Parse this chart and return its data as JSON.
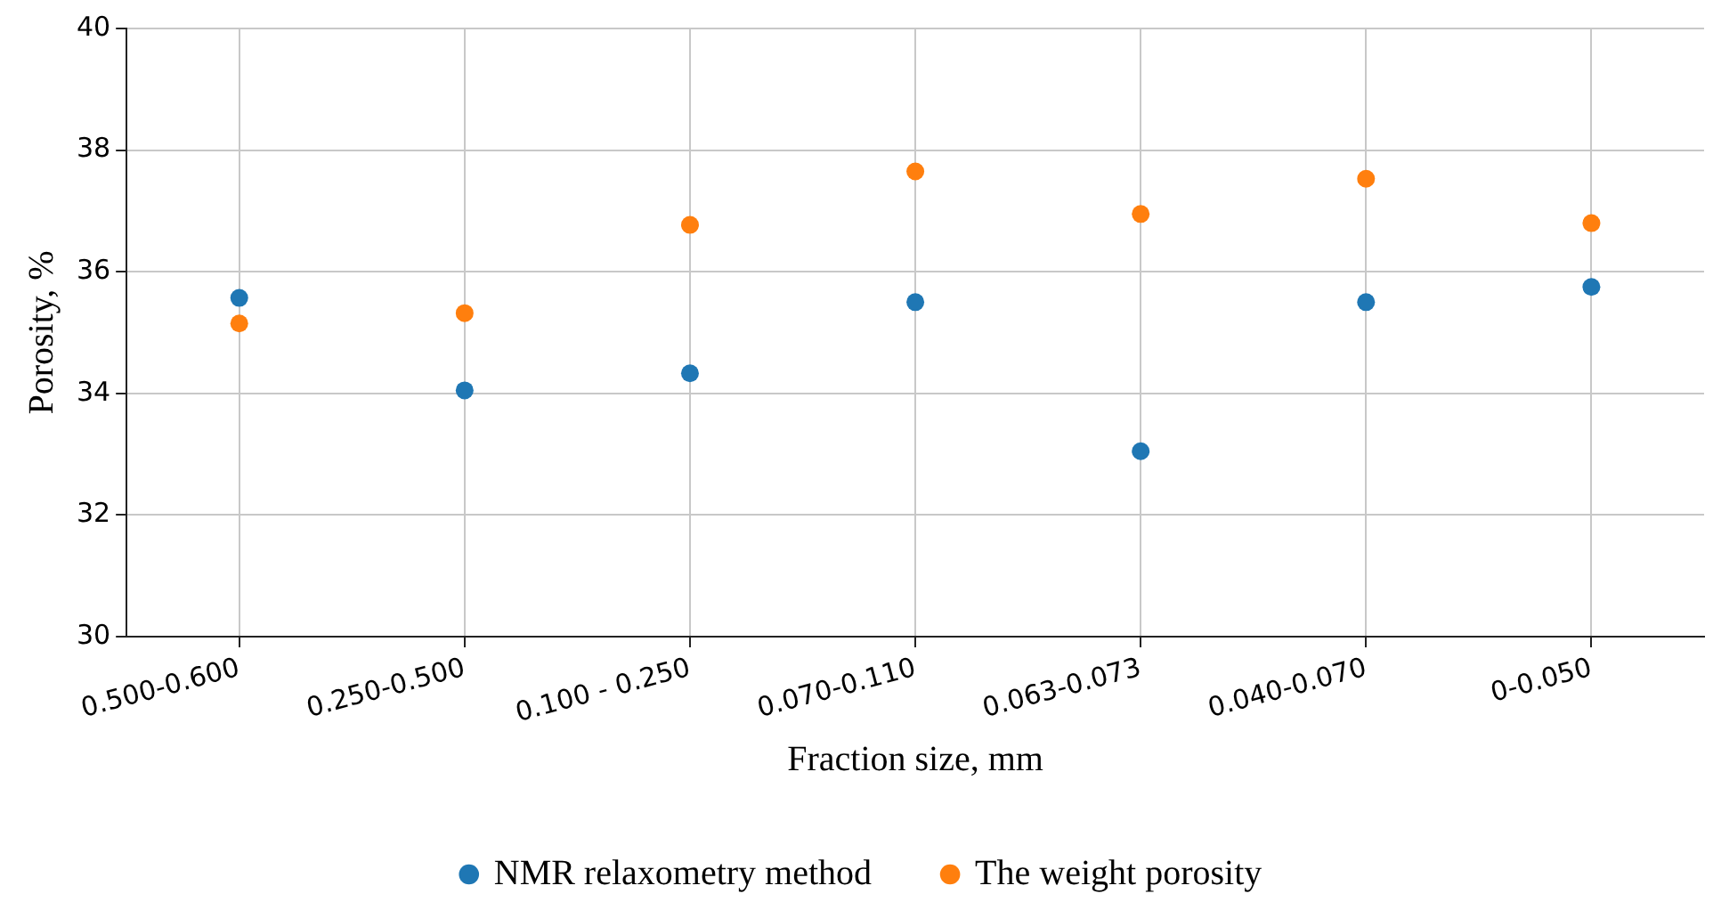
{
  "chart_data": {
    "type": "scatter",
    "xlabel": "Fraction size, mm",
    "ylabel": "Porosity, %",
    "categories": [
      "0.500-0.600",
      "0.250-0.500",
      "0.100 - 0.250",
      "0.070-0.110",
      "0.063-0.073",
      "0.040-0.070",
      "0-0.050"
    ],
    "series": [
      {
        "name": "NMR relaxometry method",
        "color": "#1f77b4",
        "values": [
          35.57,
          34.05,
          34.33,
          35.5,
          33.05,
          35.5,
          35.75
        ]
      },
      {
        "name": "The weight porosity",
        "color": "#ff7f0e",
        "values": [
          35.15,
          35.32,
          36.77,
          37.65,
          36.95,
          37.53,
          36.8
        ]
      }
    ],
    "ylim": [
      30,
      40
    ],
    "yticks": [
      30,
      32,
      34,
      36,
      38,
      40
    ],
    "grid": true,
    "legend": "bottom",
    "marker": "circle"
  }
}
